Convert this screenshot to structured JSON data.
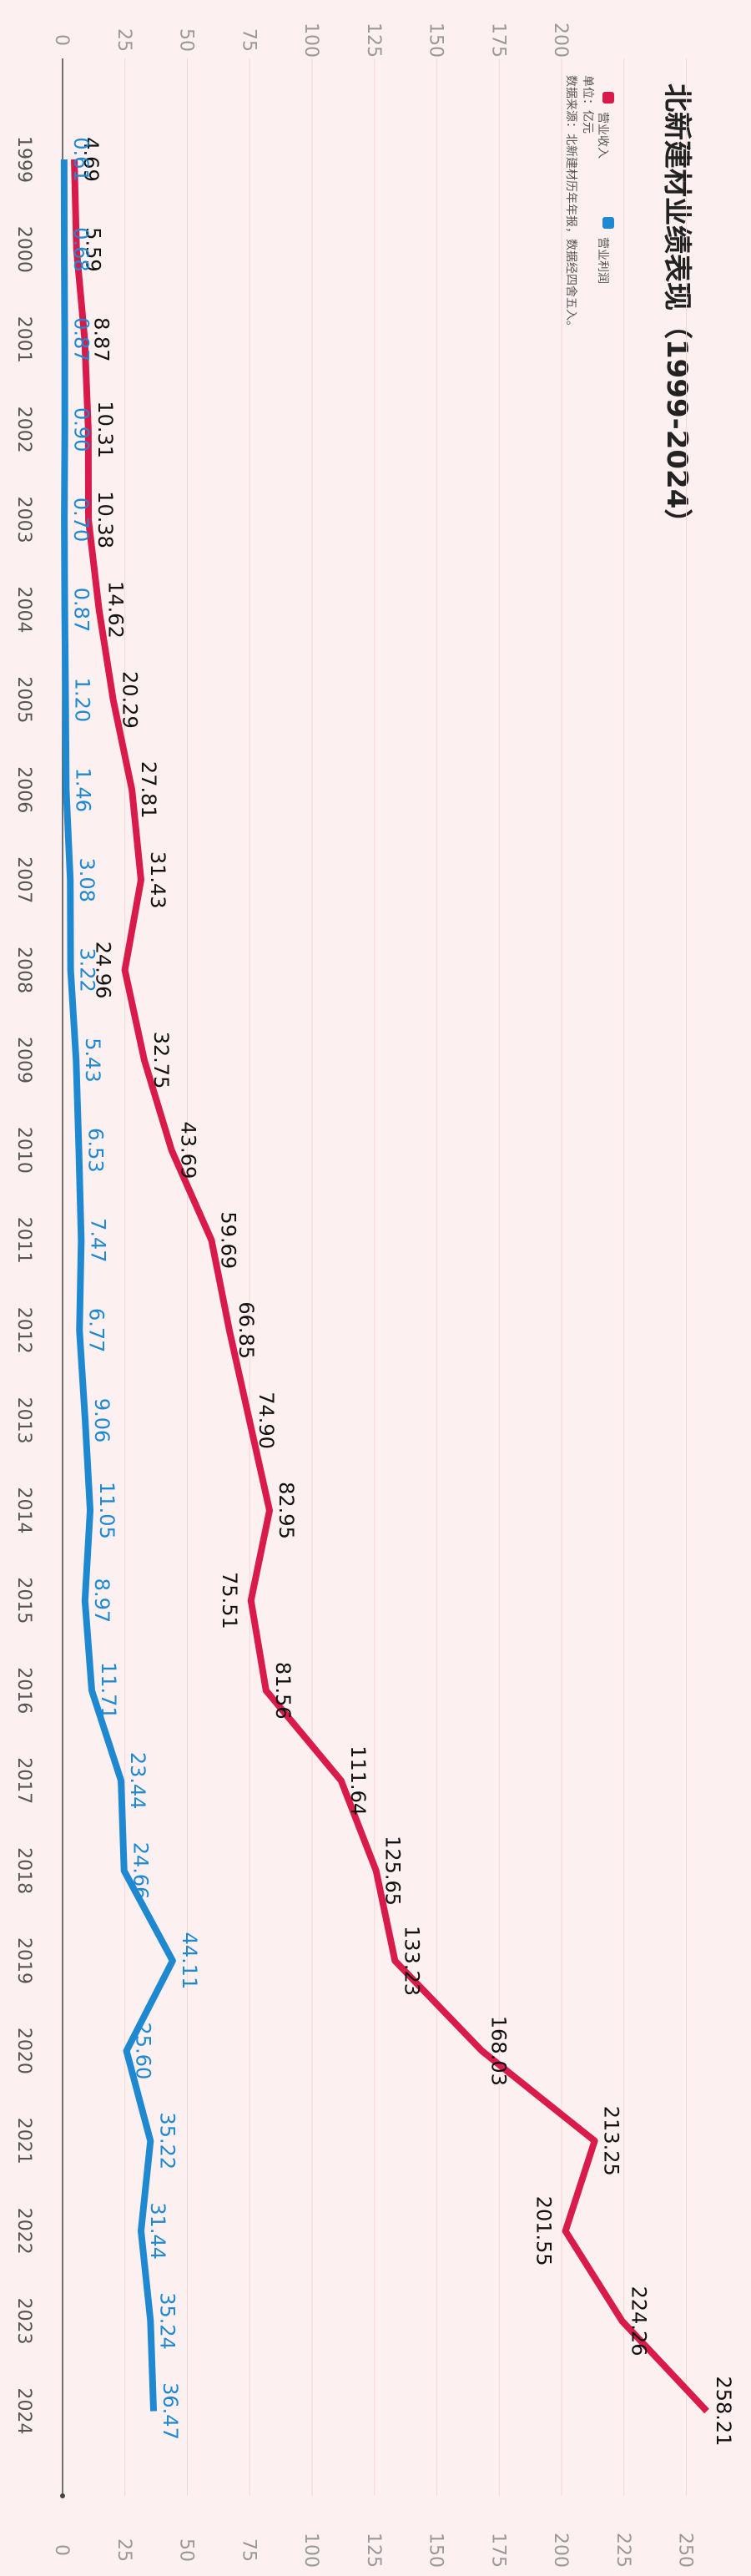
{
  "chart_data": {
    "type": "line",
    "title": "北新建材业绩表现（1999-2024）",
    "unit": "单位：亿元",
    "source": "数据来源：北新建材历年年报，数据经四舍五入。",
    "categories": [
      "1999",
      "2000",
      "2001",
      "2002",
      "2003",
      "2004",
      "2005",
      "2006",
      "2007",
      "2008",
      "2009",
      "2010",
      "2011",
      "2012",
      "2013",
      "2014",
      "2015",
      "2016",
      "2017",
      "2018",
      "2019",
      "2020",
      "2021",
      "2022",
      "2023",
      "2024"
    ],
    "series": [
      {
        "name": "营业收入",
        "color": "#d81b4a",
        "values": [
          4.69,
          5.59,
          8.87,
          10.31,
          10.38,
          14.62,
          20.29,
          27.81,
          31.43,
          24.96,
          32.75,
          43.69,
          59.69,
          66.85,
          74.9,
          82.95,
          75.51,
          81.56,
          111.64,
          125.65,
          133.23,
          168.03,
          213.25,
          201.55,
          224.26,
          258.21
        ],
        "value_labels": [
          "4.69",
          "5.59",
          "8.87",
          "10.31",
          "10.38",
          "14.62",
          "20.29",
          "27.81",
          "31.43",
          "24.96",
          "32.75",
          "43.69",
          "59.69",
          "66.85",
          "74.90",
          "82.95",
          "75.51",
          "81.56",
          "111.64",
          "125.65",
          "133.23",
          "168.03",
          "213.25",
          "201.55",
          "224.26",
          "258.21"
        ]
      },
      {
        "name": "营业利润",
        "color": "#1e88d0",
        "values": [
          0.61,
          0.68,
          0.87,
          0.9,
          0.7,
          0.87,
          1.2,
          1.46,
          3.08,
          3.22,
          5.43,
          6.53,
          7.47,
          6.77,
          9.06,
          11.05,
          8.97,
          11.71,
          23.44,
          24.66,
          44.11,
          25.6,
          35.22,
          31.44,
          35.24,
          36.47
        ],
        "value_labels": [
          "0.61",
          "0.68",
          "0.87",
          "0.90",
          "0.70",
          "0.87",
          "1.20",
          "1.46",
          "3.08",
          "3.22",
          "5.43",
          "6.53",
          "7.47",
          "6.77",
          "9.06",
          "11.05",
          "8.97",
          "11.71",
          "23.44",
          "24.66",
          "44.11",
          "25.60",
          "35.22",
          "31.44",
          "35.24",
          "36.47"
        ]
      }
    ],
    "ylim": [
      0,
      262
    ],
    "yticks": [
      0,
      25,
      50,
      75,
      100,
      125,
      150,
      175,
      200,
      225,
      250
    ],
    "grid": true
  }
}
